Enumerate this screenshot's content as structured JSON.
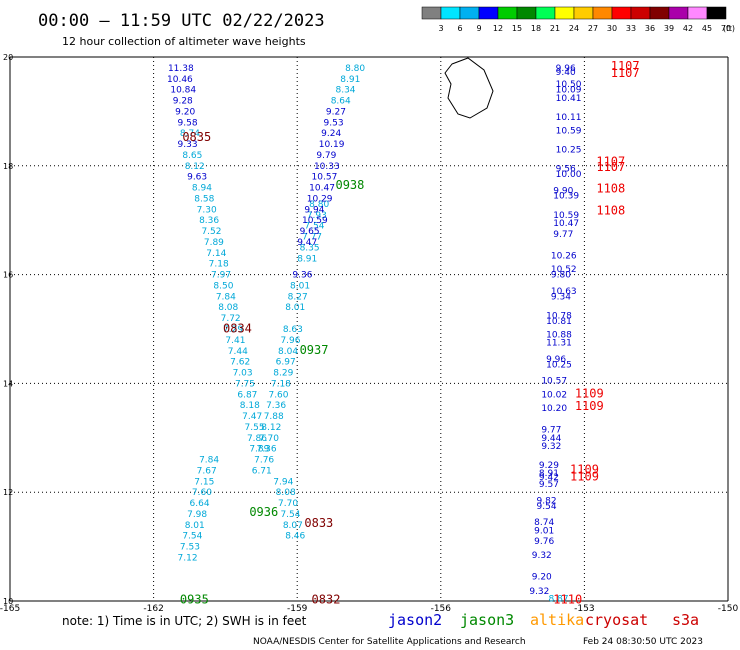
{
  "header": {
    "title": "00:00 – 11:59 UTC 02/22/2023",
    "subtitle": "12 hour collection of altimeter wave heights"
  },
  "colorbar": {
    "unit_label": "(ft)",
    "ticks": [
      "3",
      "6",
      "9",
      "12",
      "15",
      "18",
      "21",
      "24",
      "27",
      "30",
      "33",
      "36",
      "39",
      "42",
      "45",
      "70"
    ],
    "colors": [
      "#808080",
      "#00e5ff",
      "#00b0f0",
      "#0000ff",
      "#00cc00",
      "#008800",
      "#00ff55",
      "#ffff00",
      "#ffcc00",
      "#ff8800",
      "#ff0000",
      "#cc0000",
      "#800000",
      "#aa00aa",
      "#ff88ff",
      "#000000"
    ]
  },
  "footer": {
    "note": "note: 1) Time is in UTC; 2) SWH is in feet",
    "credit": "NOAA/NESDIS Center for Satellite Applications and Research",
    "timestamp": "Feb 24 08:30:50 UTC 2023",
    "legend": [
      {
        "name": "jason2",
        "color": "#0000cc"
      },
      {
        "name": "jason3",
        "color": "#008800"
      },
      {
        "name": "altika",
        "color": "#ff9900"
      },
      {
        "name": "cryosat",
        "color": "#cc0000"
      },
      {
        "name": "s3a",
        "color": "#cc0000"
      }
    ]
  },
  "chart_data": {
    "type": "scatter",
    "title": "00:00 – 11:59 UTC 02/22/2023",
    "subtitle": "12 hour collection of altimeter wave heights",
    "xlabel": "",
    "ylabel": "",
    "xlim": [
      -165,
      -150
    ],
    "ylim": [
      10,
      20
    ],
    "x_ticks": [
      "-165",
      "-162",
      "-159",
      "-156",
      "-153",
      "-150"
    ],
    "x_tick_values": [
      -165,
      -162,
      -159,
      -156,
      -153,
      -150
    ],
    "y_ticks": [
      "10",
      "12",
      "14",
      "16",
      "18",
      "20"
    ],
    "y_tick_values": [
      10,
      12,
      14,
      16,
      18,
      20
    ],
    "grid": true,
    "colors": {
      "light": "#00a8d8",
      "dark": "#0000cc",
      "green": "#008800",
      "maroon": "#800000",
      "red": "#ee0000"
    },
    "land": "Big Island (Hawaii) outline, top-right near -155.5, 19.5",
    "time_labels": [
      {
        "text": "0835",
        "lon": -161.4,
        "lat": 18.55,
        "color": "maroon"
      },
      {
        "text": "0938",
        "lon": -158.2,
        "lat": 17.67,
        "color": "green"
      },
      {
        "text": "0834",
        "lon": -160.55,
        "lat": 15.03,
        "color": "maroon"
      },
      {
        "text": "0937",
        "lon": -158.95,
        "lat": 14.63,
        "color": "green"
      },
      {
        "text": "0936",
        "lon": -160.0,
        "lat": 11.65,
        "color": "green"
      },
      {
        "text": "0833",
        "lon": -158.85,
        "lat": 11.45,
        "color": "maroon"
      },
      {
        "text": "0935",
        "lon": -161.45,
        "lat": 10.05,
        "color": "green"
      },
      {
        "text": "0832",
        "lon": -158.7,
        "lat": 10.05,
        "color": "maroon"
      },
      {
        "text": "1107",
        "lon": -152.45,
        "lat": 19.85,
        "color": "red"
      },
      {
        "text": "1107",
        "lon": -152.45,
        "lat": 19.72,
        "color": "red"
      },
      {
        "text": "1107",
        "lon": -152.75,
        "lat": 18.1,
        "color": "red"
      },
      {
        "text": "1107",
        "lon": -152.75,
        "lat": 18.0,
        "color": "red"
      },
      {
        "text": "1108",
        "lon": -152.75,
        "lat": 17.6,
        "color": "red"
      },
      {
        "text": "1108",
        "lon": -152.75,
        "lat": 17.2,
        "color": "red"
      },
      {
        "text": "1109",
        "lon": -153.2,
        "lat": 13.83,
        "color": "red"
      },
      {
        "text": "1109",
        "lon": -153.2,
        "lat": 13.6,
        "color": "red"
      },
      {
        "text": "1109",
        "lon": -153.3,
        "lat": 12.44,
        "color": "red"
      },
      {
        "text": "1109",
        "lon": -153.3,
        "lat": 12.31,
        "color": "red"
      },
      {
        "text": "1110",
        "lon": -153.65,
        "lat": 10.05,
        "color": "red"
      }
    ],
    "series": [
      {
        "color": "dark",
        "points": [
          {
            "lon": -161.7,
            "lat": 19.8,
            "value": "11.38"
          },
          {
            "lon": -161.72,
            "lat": 19.6,
            "value": "10.46"
          },
          {
            "lon": -161.65,
            "lat": 19.4,
            "value": "10.84"
          },
          {
            "lon": -161.6,
            "lat": 19.2,
            "value": "9.28"
          },
          {
            "lon": -161.55,
            "lat": 19.0,
            "value": "9.20"
          },
          {
            "lon": -161.5,
            "lat": 18.8,
            "value": "9.58"
          }
        ]
      },
      {
        "color": "light",
        "points": [
          {
            "lon": -161.45,
            "lat": 18.6,
            "value": "8.74"
          },
          {
            "lon": -161.4,
            "lat": 18.2,
            "value": "8.65"
          },
          {
            "lon": -161.35,
            "lat": 18.0,
            "value": "8.12"
          },
          {
            "lon": -161.2,
            "lat": 17.6,
            "value": "8.94"
          },
          {
            "lon": -161.15,
            "lat": 17.4,
            "value": "8.58"
          },
          {
            "lon": -161.1,
            "lat": 17.2,
            "value": "7.30"
          },
          {
            "lon": -161.05,
            "lat": 17.0,
            "value": "8.36"
          },
          {
            "lon": -161.0,
            "lat": 16.8,
            "value": "7.52"
          },
          {
            "lon": -160.95,
            "lat": 16.6,
            "value": "7.89"
          },
          {
            "lon": -160.9,
            "lat": 16.4,
            "value": "7.14"
          },
          {
            "lon": -160.85,
            "lat": 16.2,
            "value": "7.18"
          },
          {
            "lon": -160.8,
            "lat": 16.0,
            "value": "7.97"
          },
          {
            "lon": -160.75,
            "lat": 15.8,
            "value": "8.50"
          },
          {
            "lon": -160.7,
            "lat": 15.6,
            "value": "7.84"
          },
          {
            "lon": -160.65,
            "lat": 15.4,
            "value": "8.08"
          },
          {
            "lon": -160.6,
            "lat": 15.2,
            "value": "7.72"
          },
          {
            "lon": -160.55,
            "lat": 15.0,
            "value": "7.29"
          },
          {
            "lon": -160.5,
            "lat": 14.8,
            "value": "7.41"
          },
          {
            "lon": -160.45,
            "lat": 14.6,
            "value": "7.44"
          },
          {
            "lon": -160.4,
            "lat": 14.4,
            "value": "7.62"
          },
          {
            "lon": -160.35,
            "lat": 14.2,
            "value": "7.03"
          },
          {
            "lon": -160.3,
            "lat": 14.0,
            "value": "7.75"
          },
          {
            "lon": -160.25,
            "lat": 13.8,
            "value": "6.87"
          },
          {
            "lon": -160.2,
            "lat": 13.6,
            "value": "8.18"
          },
          {
            "lon": -160.15,
            "lat": 13.4,
            "value": "7.47"
          },
          {
            "lon": -160.1,
            "lat": 13.2,
            "value": "7.55"
          },
          {
            "lon": -160.05,
            "lat": 13.0,
            "value": "7.86"
          },
          {
            "lon": -160.0,
            "lat": 12.8,
            "value": "7.89"
          },
          {
            "lon": -161.05,
            "lat": 12.6,
            "value": "7.84"
          },
          {
            "lon": -161.1,
            "lat": 12.4,
            "value": "7.67"
          },
          {
            "lon": -161.15,
            "lat": 12.2,
            "value": "7.15"
          },
          {
            "lon": -161.2,
            "lat": 12.0,
            "value": "7.60"
          },
          {
            "lon": -161.25,
            "lat": 11.8,
            "value": "6.64"
          },
          {
            "lon": -161.3,
            "lat": 11.6,
            "value": "7.98"
          },
          {
            "lon": -161.35,
            "lat": 11.4,
            "value": "8.01"
          },
          {
            "lon": -161.4,
            "lat": 11.2,
            "value": "7.54"
          },
          {
            "lon": -161.45,
            "lat": 11.0,
            "value": "7.53"
          },
          {
            "lon": -161.5,
            "lat": 10.8,
            "value": "7.12"
          },
          {
            "lon": -158.0,
            "lat": 19.8,
            "value": "8.80"
          },
          {
            "lon": -158.1,
            "lat": 19.6,
            "value": "8.91"
          },
          {
            "lon": -158.2,
            "lat": 19.4,
            "value": "8.34"
          },
          {
            "lon": -158.3,
            "lat": 19.2,
            "value": "8.64"
          },
          {
            "lon": -158.75,
            "lat": 17.3,
            "value": "8.80"
          },
          {
            "lon": -158.8,
            "lat": 17.1,
            "value": "7.93"
          },
          {
            "lon": -158.85,
            "lat": 16.9,
            "value": "7.54"
          },
          {
            "lon": -158.9,
            "lat": 16.7,
            "value": "7.77"
          },
          {
            "lon": -158.95,
            "lat": 16.5,
            "value": "8.35"
          },
          {
            "lon": -159.0,
            "lat": 16.3,
            "value": "8.91"
          },
          {
            "lon": -159.15,
            "lat": 15.8,
            "value": "8.01"
          },
          {
            "lon": -159.2,
            "lat": 15.6,
            "value": "8.27"
          },
          {
            "lon": -159.25,
            "lat": 15.4,
            "value": "8.01"
          },
          {
            "lon": -159.3,
            "lat": 15.0,
            "value": "8.63"
          },
          {
            "lon": -159.35,
            "lat": 14.8,
            "value": "7.96"
          },
          {
            "lon": -159.4,
            "lat": 14.6,
            "value": "8.04"
          },
          {
            "lon": -159.45,
            "lat": 14.4,
            "value": "6.97"
          },
          {
            "lon": -159.5,
            "lat": 14.2,
            "value": "8.29"
          },
          {
            "lon": -159.55,
            "lat": 14.0,
            "value": "7.18"
          },
          {
            "lon": -159.6,
            "lat": 13.8,
            "value": "7.60"
          },
          {
            "lon": -159.65,
            "lat": 13.6,
            "value": "7.36"
          },
          {
            "lon": -159.7,
            "lat": 13.4,
            "value": "7.88"
          },
          {
            "lon": -159.75,
            "lat": 13.2,
            "value": "8.12"
          },
          {
            "lon": -159.8,
            "lat": 13.0,
            "value": "7.70"
          },
          {
            "lon": -159.85,
            "lat": 12.8,
            "value": "7.36"
          },
          {
            "lon": -159.9,
            "lat": 12.6,
            "value": "7.76"
          },
          {
            "lon": -159.95,
            "lat": 12.4,
            "value": "6.71"
          },
          {
            "lon": -159.5,
            "lat": 12.2,
            "value": "7.94"
          },
          {
            "lon": -159.45,
            "lat": 12.0,
            "value": "8.08"
          },
          {
            "lon": -159.4,
            "lat": 11.8,
            "value": "7.70"
          },
          {
            "lon": -159.35,
            "lat": 11.6,
            "value": "7.54"
          },
          {
            "lon": -159.3,
            "lat": 11.4,
            "value": "8.07"
          },
          {
            "lon": -159.25,
            "lat": 11.2,
            "value": "8.46"
          },
          {
            "lon": -153.75,
            "lat": 10.05,
            "value": "8.87"
          }
        ]
      },
      {
        "color": "dark",
        "points": [
          {
            "lon": -161.5,
            "lat": 18.4,
            "value": "9.33"
          },
          {
            "lon": -161.3,
            "lat": 17.8,
            "value": "9.63"
          },
          {
            "lon": -158.4,
            "lat": 19.0,
            "value": "9.27"
          },
          {
            "lon": -158.45,
            "lat": 18.8,
            "value": "9.53"
          },
          {
            "lon": -158.5,
            "lat": 18.6,
            "value": "9.24"
          },
          {
            "lon": -158.55,
            "lat": 18.4,
            "value": "10.19"
          },
          {
            "lon": -158.6,
            "lat": 18.2,
            "value": "9.79"
          },
          {
            "lon": -158.65,
            "lat": 18.0,
            "value": "10.33"
          },
          {
            "lon": -158.7,
            "lat": 17.8,
            "value": "10.57"
          },
          {
            "lon": -158.75,
            "lat": 17.6,
            "value": "10.47"
          },
          {
            "lon": -158.8,
            "lat": 17.4,
            "value": "10.29"
          },
          {
            "lon": -158.85,
            "lat": 17.2,
            "value": "9.94"
          },
          {
            "lon": -158.9,
            "lat": 17.0,
            "value": "10.59"
          },
          {
            "lon": -158.95,
            "lat": 16.8,
            "value": "9.65"
          },
          {
            "lon": -159.0,
            "lat": 16.6,
            "value": "9.47"
          },
          {
            "lon": -159.1,
            "lat": 16.0,
            "value": "9.36"
          },
          {
            "lon": -153.6,
            "lat": 19.8,
            "value": "9.96"
          },
          {
            "lon": -153.6,
            "lat": 19.72,
            "value": "9.40"
          },
          {
            "lon": -153.6,
            "lat": 19.5,
            "value": "10.50"
          },
          {
            "lon": -153.6,
            "lat": 19.4,
            "value": "10.09"
          },
          {
            "lon": -153.6,
            "lat": 19.25,
            "value": "10.41"
          },
          {
            "lon": -153.6,
            "lat": 18.9,
            "value": "10.11"
          },
          {
            "lon": -153.6,
            "lat": 18.65,
            "value": "10.59"
          },
          {
            "lon": -153.6,
            "lat": 18.3,
            "value": "10.25"
          },
          {
            "lon": -153.6,
            "lat": 17.95,
            "value": "9.56"
          },
          {
            "lon": -153.6,
            "lat": 17.85,
            "value": "10.00"
          },
          {
            "lon": -153.65,
            "lat": 17.55,
            "value": "9.90"
          },
          {
            "lon": -153.65,
            "lat": 17.45,
            "value": "10.39"
          },
          {
            "lon": -153.65,
            "lat": 17.1,
            "value": "10.59"
          },
          {
            "lon": -153.65,
            "lat": 16.95,
            "value": "10.47"
          },
          {
            "lon": -153.65,
            "lat": 16.75,
            "value": "9.77"
          },
          {
            "lon": -153.7,
            "lat": 16.35,
            "value": "10.26"
          },
          {
            "lon": -153.7,
            "lat": 16.1,
            "value": "10.52"
          },
          {
            "lon": -153.7,
            "lat": 16.0,
            "value": "9.80"
          },
          {
            "lon": -153.7,
            "lat": 15.7,
            "value": "10.63"
          },
          {
            "lon": -153.7,
            "lat": 15.6,
            "value": "9.34"
          },
          {
            "lon": -153.8,
            "lat": 15.25,
            "value": "10.78"
          },
          {
            "lon": -153.8,
            "lat": 15.15,
            "value": "10.81"
          },
          {
            "lon": -153.8,
            "lat": 14.9,
            "value": "10.88"
          },
          {
            "lon": -153.8,
            "lat": 14.75,
            "value": "11.31"
          },
          {
            "lon": -153.8,
            "lat": 14.45,
            "value": "9.96"
          },
          {
            "lon": -153.8,
            "lat": 14.35,
            "value": "10.25"
          },
          {
            "lon": -153.9,
            "lat": 14.05,
            "value": "10.57"
          },
          {
            "lon": -153.9,
            "lat": 13.8,
            "value": "10.02"
          },
          {
            "lon": -153.9,
            "lat": 13.55,
            "value": "10.20"
          },
          {
            "lon": -153.9,
            "lat": 13.15,
            "value": "9.77"
          },
          {
            "lon": -153.9,
            "lat": 13.0,
            "value": "9.44"
          },
          {
            "lon": -153.9,
            "lat": 12.85,
            "value": "9.32"
          },
          {
            "lon": -153.95,
            "lat": 12.5,
            "value": "9.29"
          },
          {
            "lon": -153.95,
            "lat": 12.35,
            "value": "8.91"
          },
          {
            "lon": -153.95,
            "lat": 12.28,
            "value": "9.42"
          },
          {
            "lon": -153.95,
            "lat": 12.15,
            "value": "9.57"
          },
          {
            "lon": -154.0,
            "lat": 11.85,
            "value": "9.82"
          },
          {
            "lon": -154.0,
            "lat": 11.75,
            "value": "9.54"
          },
          {
            "lon": -154.05,
            "lat": 11.45,
            "value": "8.74"
          },
          {
            "lon": -154.05,
            "lat": 11.3,
            "value": "9.01"
          },
          {
            "lon": -154.05,
            "lat": 11.1,
            "value": "9.76"
          },
          {
            "lon": -154.1,
            "lat": 10.85,
            "value": "9.32"
          },
          {
            "lon": -154.1,
            "lat": 10.45,
            "value": "9.20"
          },
          {
            "lon": -154.15,
            "lat": 10.18,
            "value": "9.32"
          }
        ]
      }
    ]
  }
}
